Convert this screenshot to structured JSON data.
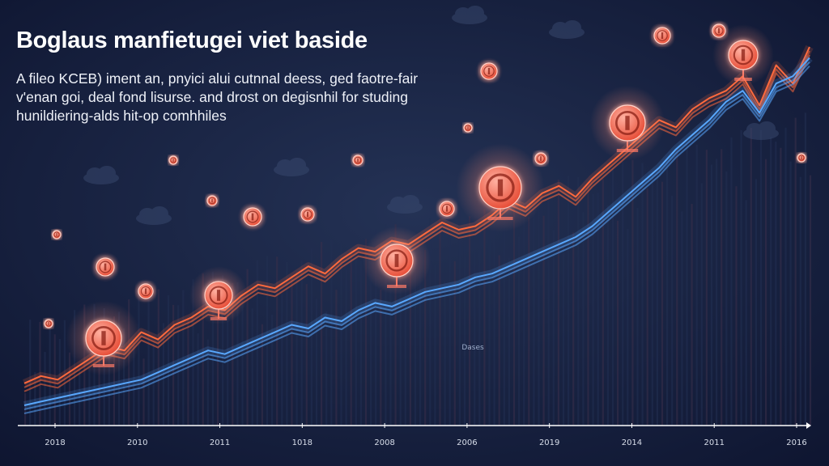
{
  "title": "Boglaus manfietugei viet baside",
  "subtitle_lines": [
    "A fileo KCEB) iment an, pnyici alui cutnnal deess, ged faotre-fair",
    "v'enan goi, deal fond lisurse. and drost on degisnhil for studing",
    "hunildiering-alds hit-op comhhiles"
  ],
  "colors": {
    "background": "#1b2440",
    "background_dark": "#0e1530",
    "orange_line": "#ff6a3d",
    "blue_line": "#59a8ff",
    "coin": "#ff7a66",
    "axis": "#ffffff"
  },
  "chart_data": {
    "type": "line",
    "title": "Boglaus manfietugei viet baside",
    "xlabel": "",
    "ylabel": "",
    "x_tick_labels": [
      "2018",
      "2010",
      "2011",
      "1018",
      "2008",
      "2006",
      "2019",
      "2014",
      "2011",
      "2016"
    ],
    "annotation": "Dases",
    "grid": false,
    "legend": "none",
    "ylim": [
      0,
      100
    ],
    "series": [
      {
        "color": "#ff6a3d",
        "values": [
          8,
          10,
          9,
          12,
          15,
          18,
          17,
          22,
          20,
          24,
          26,
          29,
          28,
          32,
          35,
          34,
          37,
          40,
          38,
          42,
          45,
          44,
          47,
          46,
          49,
          52,
          50,
          51,
          54,
          58,
          56,
          60,
          62,
          59,
          64,
          68,
          72,
          76,
          80,
          78,
          83,
          86,
          88,
          92,
          84,
          95,
          90,
          100
        ]
      },
      {
        "color": "#59a8ff",
        "values": [
          2,
          3,
          4,
          5,
          6,
          7,
          8,
          9,
          11,
          13,
          15,
          17,
          16,
          18,
          20,
          22,
          24,
          23,
          26,
          25,
          28,
          30,
          29,
          31,
          33,
          34,
          35,
          37,
          38,
          40,
          42,
          44,
          46,
          48,
          51,
          55,
          59,
          63,
          67,
          72,
          76,
          80,
          85,
          88,
          82,
          90,
          92,
          97
        ]
      }
    ]
  }
}
